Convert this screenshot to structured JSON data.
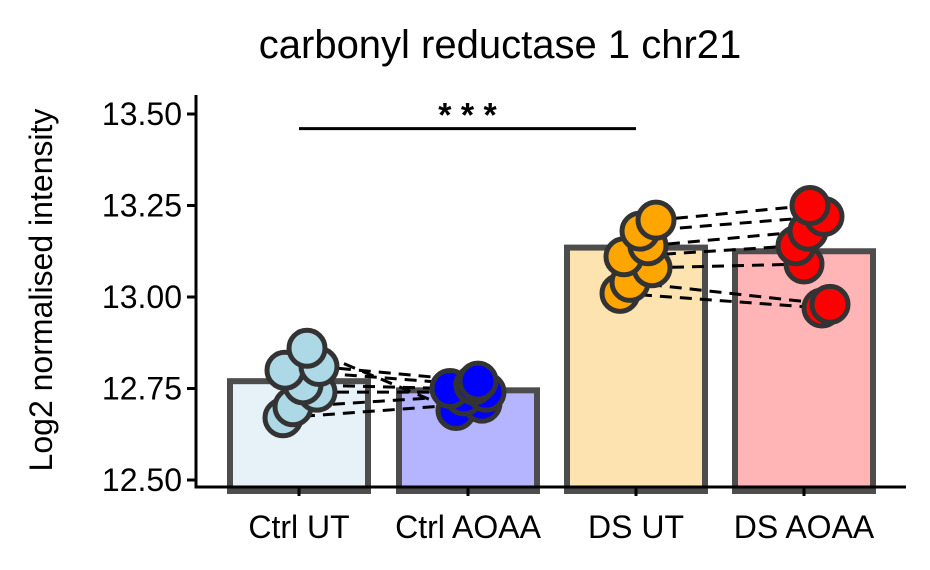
{
  "chart_data": {
    "type": "bar",
    "title": "carbonyl reductase 1 chr21",
    "ylabel": "Log2 normalised intensity",
    "xlabel": "",
    "categories": [
      "Ctrl UT",
      "Ctrl AOAA",
      "DS UT",
      "DS AOAA"
    ],
    "values": [
      12.77,
      12.745,
      13.135,
      13.125
    ],
    "baseline": 12.47,
    "ylim": [
      12.48,
      13.55
    ],
    "yticks": [
      12.5,
      12.75,
      13.0,
      13.25,
      13.5
    ],
    "ytick_labels": [
      "12.50",
      "12.75",
      "13.00",
      "13.25",
      "13.50"
    ],
    "bar_colors": [
      "#e6f1f8",
      "#b4b4ff",
      "#fde3b0",
      "#ffb5b5"
    ],
    "point_colors": [
      "#add8e6",
      "#0000ff",
      "#ffa500",
      "#ff0000"
    ],
    "bar_edge_color": "#4d4d4d",
    "points": [
      [
        12.67,
        12.7,
        12.74,
        12.76,
        12.8,
        12.81,
        12.86
      ],
      [
        12.69,
        12.71,
        12.73,
        12.74,
        12.75,
        12.76,
        12.77
      ],
      [
        13.01,
        13.04,
        13.08,
        13.11,
        13.14,
        13.18,
        13.21
      ],
      [
        12.97,
        12.98,
        13.09,
        13.14,
        13.18,
        13.22,
        13.25
      ]
    ],
    "pairs": [
      [
        [
          12.67,
          12.71
        ],
        [
          12.7,
          12.73
        ],
        [
          12.74,
          12.74
        ],
        [
          12.76,
          12.75
        ],
        [
          12.8,
          12.76
        ],
        [
          12.81,
          12.77
        ],
        [
          12.86,
          12.69
        ]
      ],
      [
        [
          13.01,
          12.97
        ],
        [
          13.04,
          12.98
        ],
        [
          13.08,
          13.09
        ],
        [
          13.11,
          13.14
        ],
        [
          13.14,
          13.18
        ],
        [
          13.18,
          13.22
        ],
        [
          13.21,
          13.25
        ]
      ]
    ],
    "significance": [
      {
        "from": 0,
        "to": 2,
        "label": "* * *",
        "y": 13.46
      }
    ],
    "grid": false,
    "legend": "none"
  }
}
